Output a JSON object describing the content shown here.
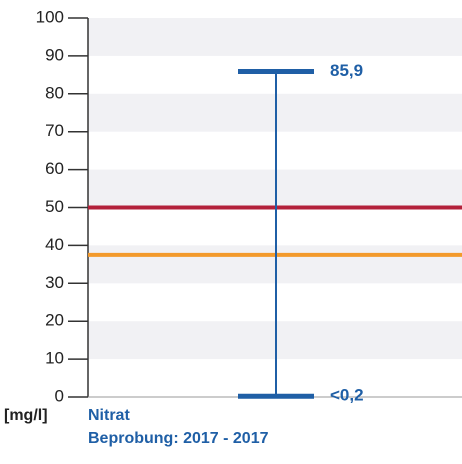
{
  "chart_data": {
    "type": "range",
    "y_label": "[mg/l]",
    "subtitle": "Beprobung: 2017 - 2017",
    "series": [
      {
        "name": "Nitrat",
        "color": "#1f5fa6",
        "values": [
          0.2,
          85.9
        ],
        "value_labels": [
          "<0,2",
          "85,9"
        ]
      }
    ],
    "reference_lines": [
      {
        "value": 50,
        "color": "#b3213a"
      },
      {
        "value": 37.5,
        "color": "#f39a2c"
      }
    ],
    "ylim": [
      0,
      100
    ],
    "yticks": [
      0,
      10,
      20,
      30,
      40,
      50,
      60,
      70,
      80,
      90,
      100
    ]
  }
}
